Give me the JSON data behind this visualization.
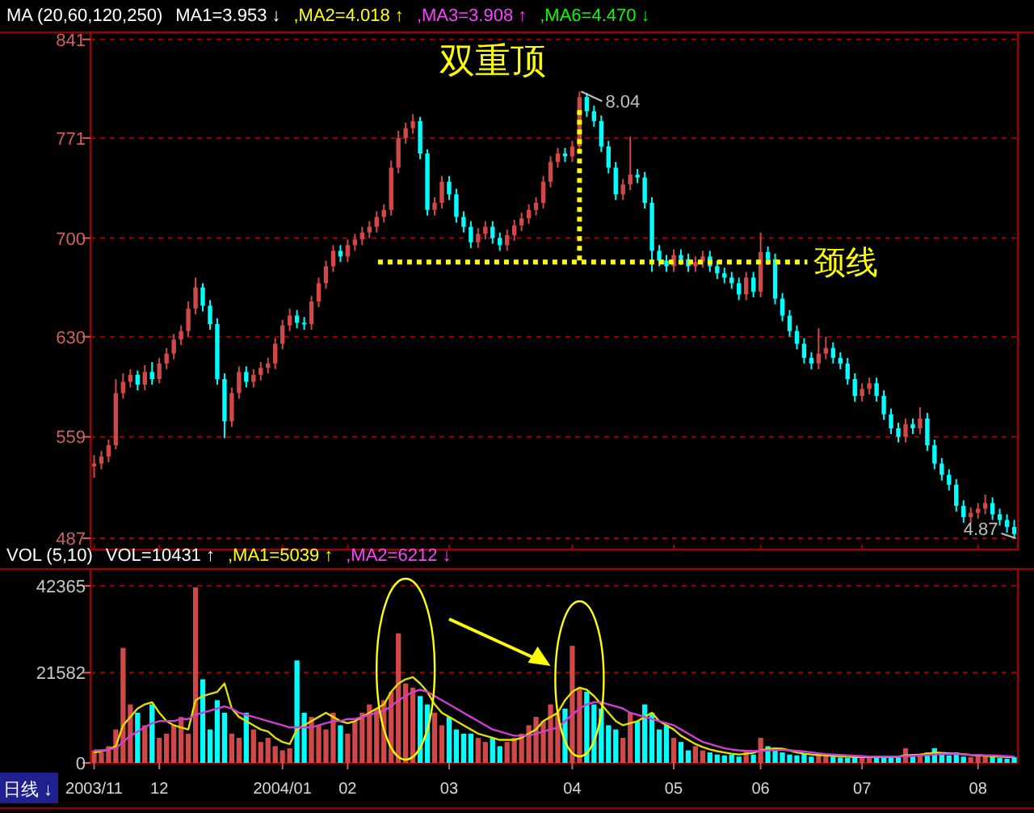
{
  "chart_data": [
    {
      "type": "candlestick",
      "title": "双重顶",
      "tick_labels": "y",
      "grid": "y",
      "ylim": [
        479,
        846
      ],
      "yticks": [
        487,
        559,
        630,
        700,
        771,
        841
      ],
      "categories": [
        "2003/11",
        null,
        null,
        null,
        null,
        null,
        null,
        null,
        null,
        "12",
        null,
        null,
        null,
        null,
        null,
        null,
        null,
        null,
        null,
        null,
        null,
        null,
        null,
        null,
        null,
        null,
        "2004/01",
        null,
        null,
        null,
        null,
        null,
        null,
        null,
        null,
        "02",
        null,
        null,
        null,
        null,
        null,
        null,
        null,
        null,
        null,
        null,
        null,
        null,
        null,
        "03",
        null,
        null,
        null,
        null,
        null,
        null,
        null,
        null,
        null,
        null,
        null,
        null,
        null,
        null,
        null,
        null,
        "04",
        null,
        null,
        null,
        null,
        null,
        null,
        null,
        null,
        null,
        null,
        null,
        null,
        null,
        "05",
        null,
        null,
        null,
        null,
        null,
        null,
        null,
        null,
        null,
        null,
        null,
        "06",
        null,
        null,
        null,
        null,
        null,
        null,
        null,
        null,
        null,
        null,
        null,
        null,
        null,
        "07",
        null,
        null,
        null,
        null,
        null,
        null,
        null,
        null,
        null,
        null,
        null,
        null,
        null,
        null,
        null,
        "08",
        null,
        null,
        null,
        null,
        null
      ],
      "ohlc": [
        [
          538,
          546,
          530,
          540
        ],
        [
          540,
          549,
          536,
          545
        ],
        [
          545,
          557,
          541,
          553
        ],
        [
          553,
          600,
          550,
          590
        ],
        [
          590,
          604,
          586,
          598
        ],
        [
          598,
          607,
          594,
          603
        ],
        [
          603,
          606,
          592,
          596
        ],
        [
          596,
          610,
          592,
          605
        ],
        [
          605,
          612,
          596,
          600
        ],
        [
          600,
          615,
          597,
          611
        ],
        [
          611,
          622,
          607,
          618
        ],
        [
          618,
          632,
          614,
          628
        ],
        [
          628,
          638,
          624,
          634
        ],
        [
          634,
          655,
          630,
          650
        ],
        [
          650,
          672,
          646,
          665
        ],
        [
          665,
          668,
          648,
          652
        ],
        [
          652,
          656,
          635,
          639
        ],
        [
          639,
          643,
          596,
          600
        ],
        [
          600,
          604,
          558,
          570
        ],
        [
          570,
          594,
          566,
          590
        ],
        [
          590,
          609,
          586,
          605
        ],
        [
          605,
          609,
          594,
          598
        ],
        [
          598,
          607,
          594,
          603
        ],
        [
          603,
          612,
          599,
          608
        ],
        [
          608,
          615,
          604,
          611
        ],
        [
          611,
          629,
          607,
          625
        ],
        [
          625,
          642,
          621,
          638
        ],
        [
          638,
          650,
          634,
          645
        ],
        [
          645,
          649,
          636,
          640
        ],
        [
          640,
          644,
          635,
          639
        ],
        [
          639,
          659,
          635,
          655
        ],
        [
          655,
          672,
          651,
          668
        ],
        [
          668,
          684,
          664,
          680
        ],
        [
          680,
          695,
          676,
          691
        ],
        [
          691,
          695,
          683,
          687
        ],
        [
          687,
          699,
          683,
          695
        ],
        [
          695,
          703,
          691,
          699
        ],
        [
          699,
          708,
          695,
          704
        ],
        [
          704,
          712,
          700,
          708
        ],
        [
          708,
          719,
          704,
          715
        ],
        [
          715,
          724,
          711,
          720
        ],
        [
          720,
          755,
          716,
          750
        ],
        [
          750,
          776,
          746,
          771
        ],
        [
          771,
          782,
          767,
          778
        ],
        [
          778,
          788,
          774,
          783
        ],
        [
          783,
          786,
          756,
          760
        ],
        [
          760,
          763,
          716,
          720
        ],
        [
          720,
          729,
          716,
          725
        ],
        [
          725,
          744,
          721,
          740
        ],
        [
          740,
          744,
          727,
          731
        ],
        [
          731,
          735,
          711,
          715
        ],
        [
          715,
          719,
          704,
          708
        ],
        [
          708,
          712,
          693,
          697
        ],
        [
          697,
          707,
          693,
          703
        ],
        [
          703,
          712,
          699,
          708
        ],
        [
          708,
          712,
          696,
          700
        ],
        [
          700,
          704,
          691,
          695
        ],
        [
          695,
          706,
          691,
          702
        ],
        [
          702,
          713,
          698,
          709
        ],
        [
          709,
          718,
          705,
          714
        ],
        [
          714,
          724,
          710,
          720
        ],
        [
          720,
          729,
          716,
          725
        ],
        [
          725,
          744,
          721,
          740
        ],
        [
          740,
          758,
          736,
          754
        ],
        [
          754,
          764,
          750,
          760
        ],
        [
          760,
          764,
          754,
          758
        ],
        [
          758,
          769,
          754,
          765
        ],
        [
          765,
          804,
          762,
          800
        ],
        [
          800,
          803,
          786,
          790
        ],
        [
          790,
          794,
          779,
          783
        ],
        [
          783,
          787,
          761,
          765
        ],
        [
          765,
          769,
          746,
          750
        ],
        [
          750,
          754,
          727,
          731
        ],
        [
          731,
          742,
          727,
          738
        ],
        [
          738,
          772,
          734,
          745
        ],
        [
          745,
          749,
          739,
          743
        ],
        [
          743,
          747,
          721,
          725
        ],
        [
          725,
          729,
          676,
          691
        ],
        [
          691,
          695,
          680,
          684
        ],
        [
          684,
          688,
          676,
          680
        ],
        [
          680,
          692,
          676,
          688
        ],
        [
          688,
          692,
          681,
          685
        ],
        [
          685,
          689,
          676,
          680
        ],
        [
          680,
          687,
          676,
          683
        ],
        [
          683,
          691,
          679,
          687
        ],
        [
          687,
          691,
          676,
          680
        ],
        [
          680,
          684,
          671,
          675
        ],
        [
          675,
          679,
          668,
          672
        ],
        [
          672,
          676,
          664,
          668
        ],
        [
          668,
          672,
          656,
          660
        ],
        [
          660,
          676,
          656,
          672
        ],
        [
          672,
          676,
          658,
          662
        ],
        [
          662,
          704,
          658,
          690
        ],
        [
          690,
          694,
          681,
          685
        ],
        [
          685,
          689,
          653,
          657
        ],
        [
          657,
          661,
          641,
          645
        ],
        [
          645,
          649,
          630,
          634
        ],
        [
          634,
          638,
          621,
          625
        ],
        [
          625,
          629,
          611,
          615
        ],
        [
          615,
          619,
          607,
          611
        ],
        [
          611,
          636,
          607,
          618
        ],
        [
          618,
          630,
          614,
          622
        ],
        [
          622,
          626,
          611,
          615
        ],
        [
          615,
          619,
          607,
          611
        ],
        [
          611,
          615,
          596,
          600
        ],
        [
          600,
          604,
          584,
          588
        ],
        [
          588,
          597,
          584,
          593
        ],
        [
          593,
          601,
          589,
          597
        ],
        [
          597,
          601,
          584,
          588
        ],
        [
          588,
          592,
          571,
          575
        ],
        [
          575,
          579,
          561,
          565
        ],
        [
          565,
          569,
          555,
          559
        ],
        [
          559,
          572,
          555,
          568
        ],
        [
          568,
          572,
          561,
          565
        ],
        [
          565,
          580,
          561,
          572
        ],
        [
          572,
          576,
          549,
          553
        ],
        [
          553,
          557,
          536,
          540
        ],
        [
          540,
          544,
          528,
          532
        ],
        [
          532,
          536,
          521,
          525
        ],
        [
          525,
          529,
          506,
          510
        ],
        [
          510,
          514,
          498,
          502
        ],
        [
          502,
          509,
          498,
          505
        ],
        [
          505,
          512,
          501,
          508
        ],
        [
          508,
          518,
          504,
          512
        ],
        [
          512,
          516,
          500,
          504
        ],
        [
          504,
          508,
          496,
          500
        ],
        [
          500,
          504,
          491,
          495
        ],
        [
          495,
          500,
          487,
          490
        ]
      ],
      "colors": [
        "#d04848",
        "#d04848",
        "#d04848",
        "#d04848",
        "#d04848",
        "#d04848",
        "#00ffff",
        "#d04848",
        "#00ffff",
        "#d04848",
        "#d04848",
        "#d04848",
        "#d04848",
        "#d04848",
        "#d04848",
        "#00ffff",
        "#00ffff",
        "#00ffff",
        "#00ffff",
        "#d04848",
        "#d04848",
        "#00ffff",
        "#d04848",
        "#d04848",
        "#d04848",
        "#d04848",
        "#d04848",
        "#d04848",
        "#00ffff",
        "#00ffff",
        "#d04848",
        "#d04848",
        "#d04848",
        "#d04848",
        "#00ffff",
        "#d04848",
        "#d04848",
        "#d04848",
        "#d04848",
        "#d04848",
        "#d04848",
        "#d04848",
        "#d04848",
        "#d04848",
        "#d04848",
        "#00ffff",
        "#00ffff",
        "#d04848",
        "#d04848",
        "#00ffff",
        "#00ffff",
        "#00ffff",
        "#00ffff",
        "#d04848",
        "#d04848",
        "#00ffff",
        "#00ffff",
        "#d04848",
        "#d04848",
        "#d04848",
        "#d04848",
        "#d04848",
        "#d04848",
        "#d04848",
        "#d04848",
        "#00ffff",
        "#d04848",
        "#d04848",
        "#00ffff",
        "#00ffff",
        "#00ffff",
        "#00ffff",
        "#00ffff",
        "#d04848",
        "#d04848",
        "#00ffff",
        "#00ffff",
        "#00ffff",
        "#00ffff",
        "#00ffff",
        "#d04848",
        "#00ffff",
        "#00ffff",
        "#d04848",
        "#d04848",
        "#00ffff",
        "#00ffff",
        "#00ffff",
        "#00ffff",
        "#00ffff",
        "#d04848",
        "#00ffff",
        "#d04848",
        "#00ffff",
        "#00ffff",
        "#00ffff",
        "#00ffff",
        "#00ffff",
        "#00ffff",
        "#00ffff",
        "#d04848",
        "#d04848",
        "#00ffff",
        "#00ffff",
        "#00ffff",
        "#00ffff",
        "#d04848",
        "#d04848",
        "#00ffff",
        "#00ffff",
        "#00ffff",
        "#00ffff",
        "#d04848",
        "#00ffff",
        "#d04848",
        "#00ffff",
        "#00ffff",
        "#00ffff",
        "#00ffff",
        "#00ffff",
        "#00ffff",
        "#d04848",
        "#d04848",
        "#d04848",
        "#00ffff",
        "#00ffff",
        "#00ffff",
        "#00ffff"
      ],
      "ref_lines": [
        {
          "axis": "y",
          "value": 683,
          "label": "颈线",
          "color": "#ffff00",
          "line_style": "dotted"
        }
      ],
      "annotations": [
        "8.04",
        "4.87",
        "MA (20,60,120,250)",
        "MA1=3.953 ↓",
        ",MA2=4.018 ↑",
        ",MA3=3.908 ↑",
        ",MA6=4.470 ↓"
      ]
    },
    {
      "type": "bar",
      "grid": "y",
      "ylim": [
        0,
        46400
      ],
      "yticks": [
        0,
        21582,
        42365
      ],
      "categories": [
        "2003/11",
        null,
        null,
        null,
        null,
        null,
        null,
        null,
        null,
        "12",
        null,
        null,
        null,
        null,
        null,
        null,
        null,
        null,
        null,
        null,
        null,
        null,
        null,
        null,
        null,
        null,
        "2004/01",
        null,
        null,
        null,
        null,
        null,
        null,
        null,
        null,
        "02",
        null,
        null,
        null,
        null,
        null,
        null,
        null,
        null,
        null,
        null,
        null,
        null,
        null,
        "03",
        null,
        null,
        null,
        null,
        null,
        null,
        null,
        null,
        null,
        null,
        null,
        null,
        null,
        null,
        null,
        null,
        "04",
        null,
        null,
        null,
        null,
        null,
        null,
        null,
        null,
        null,
        null,
        null,
        null,
        null,
        "05",
        null,
        null,
        null,
        null,
        null,
        null,
        null,
        null,
        null,
        null,
        null,
        "06",
        null,
        null,
        null,
        null,
        null,
        null,
        null,
        null,
        null,
        null,
        null,
        null,
        null,
        "07",
        null,
        null,
        null,
        null,
        null,
        null,
        null,
        null,
        null,
        null,
        null,
        null,
        null,
        null,
        null,
        "08",
        null,
        null,
        null,
        null,
        null
      ],
      "series": [
        {
          "type": "bar",
          "values": [
            3000,
            2500,
            4000,
            8000,
            27500,
            14000,
            12000,
            9000,
            14000,
            6000,
            7000,
            9000,
            11000,
            7000,
            42000,
            20000,
            8000,
            15000,
            12000,
            7000,
            6000,
            12000,
            8000,
            5000,
            6000,
            4000,
            3000,
            3500,
            24500,
            12000,
            11000,
            9000,
            8000,
            12000,
            9000,
            7000,
            10000,
            12000,
            14000,
            13000,
            15000,
            17000,
            31000,
            19000,
            18000,
            16000,
            14000,
            12000,
            9000,
            11000,
            8000,
            7000,
            7000,
            6000,
            5000,
            6000,
            4000,
            5000,
            6000,
            7000,
            9000,
            11000,
            10000,
            14000,
            12000,
            13000,
            28000,
            18000,
            17000,
            14000,
            13000,
            9000,
            8000,
            6000,
            12000,
            10000,
            14000,
            12000,
            8000,
            9000,
            6000,
            5000,
            3000,
            4000,
            3000,
            2500,
            2000,
            1800,
            2000,
            1500,
            3000,
            2000,
            6000,
            4000,
            3000,
            2500,
            2000,
            1800,
            2200,
            1500,
            2000,
            1800,
            1500,
            1300,
            1200,
            1500,
            1800,
            1400,
            1300,
            1200,
            1500,
            1600,
            3500,
            1500,
            2000,
            2500,
            3500,
            2000,
            1800,
            2500,
            1500,
            1400,
            2000,
            1800,
            1600,
            1200,
            1000,
            1400
          ],
          "colors": [
            "#d04848",
            "#d04848",
            "#d04848",
            "#d04848",
            "#d04848",
            "#d04848",
            "#00ffff",
            "#d04848",
            "#00ffff",
            "#d04848",
            "#d04848",
            "#d04848",
            "#d04848",
            "#d04848",
            "#d04848",
            "#00ffff",
            "#00ffff",
            "#00ffff",
            "#00ffff",
            "#d04848",
            "#d04848",
            "#00ffff",
            "#d04848",
            "#d04848",
            "#d04848",
            "#d04848",
            "#d04848",
            "#d04848",
            "#00ffff",
            "#00ffff",
            "#d04848",
            "#d04848",
            "#d04848",
            "#d04848",
            "#00ffff",
            "#d04848",
            "#d04848",
            "#d04848",
            "#d04848",
            "#d04848",
            "#d04848",
            "#d04848",
            "#d04848",
            "#d04848",
            "#d04848",
            "#00ffff",
            "#00ffff",
            "#d04848",
            "#d04848",
            "#00ffff",
            "#00ffff",
            "#00ffff",
            "#00ffff",
            "#d04848",
            "#d04848",
            "#00ffff",
            "#00ffff",
            "#d04848",
            "#d04848",
            "#d04848",
            "#d04848",
            "#d04848",
            "#d04848",
            "#d04848",
            "#d04848",
            "#00ffff",
            "#d04848",
            "#d04848",
            "#00ffff",
            "#00ffff",
            "#00ffff",
            "#00ffff",
            "#00ffff",
            "#d04848",
            "#d04848",
            "#00ffff",
            "#00ffff",
            "#00ffff",
            "#00ffff",
            "#00ffff",
            "#d04848",
            "#00ffff",
            "#00ffff",
            "#d04848",
            "#d04848",
            "#00ffff",
            "#00ffff",
            "#00ffff",
            "#00ffff",
            "#00ffff",
            "#d04848",
            "#00ffff",
            "#d04848",
            "#00ffff",
            "#00ffff",
            "#00ffff",
            "#00ffff",
            "#00ffff",
            "#00ffff",
            "#00ffff",
            "#d04848",
            "#d04848",
            "#00ffff",
            "#00ffff",
            "#00ffff",
            "#00ffff",
            "#d04848",
            "#d04848",
            "#00ffff",
            "#00ffff",
            "#00ffff",
            "#00ffff",
            "#d04848",
            "#00ffff",
            "#d04848",
            "#00ffff",
            "#00ffff",
            "#00ffff",
            "#00ffff",
            "#00ffff",
            "#00ffff",
            "#d04848",
            "#d04848",
            "#d04848",
            "#00ffff",
            "#00ffff",
            "#00ffff",
            "#00ffff"
          ]
        },
        {
          "type": "line",
          "color": "#e0e000",
          "values": [
            2500,
            2800,
            3200,
            4000,
            9000,
            11000,
            13000,
            14000,
            14500,
            12000,
            10000,
            9000,
            8500,
            8000,
            15000,
            16000,
            16500,
            17000,
            19000,
            13000,
            11000,
            10000,
            9000,
            8000,
            7500,
            6000,
            5000,
            4500,
            8000,
            9000,
            10000,
            11000,
            12000,
            11000,
            10000,
            9500,
            10000,
            11000,
            12000,
            13000,
            14000,
            17000,
            19000,
            20000,
            20500,
            19000,
            17000,
            14000,
            12000,
            11000,
            10000,
            9000,
            8000,
            7000,
            6500,
            6000,
            5500,
            5500,
            5500,
            6000,
            7000,
            8000,
            10000,
            11000,
            12000,
            15000,
            17000,
            18000,
            17500,
            16000,
            14000,
            12000,
            10000,
            9000,
            9500,
            10000,
            11000,
            12000,
            10000,
            9000,
            8000,
            6500,
            5500,
            4500,
            3800,
            3200,
            2800,
            2500,
            2200,
            2000,
            2200,
            2400,
            3000,
            3300,
            3500,
            3400,
            3000,
            2500,
            2200,
            2000,
            1900,
            1800,
            1700,
            1600,
            1500,
            1400,
            1400,
            1400,
            1400,
            1400,
            1400,
            1500,
            1800,
            1900,
            2000,
            2200,
            2500,
            2400,
            2300,
            2200,
            2100,
            1900,
            1800,
            1700,
            1600,
            1500,
            1400,
            1400
          ]
        },
        {
          "type": "line",
          "color": "#d040d0",
          "values": [
            3000,
            3000,
            3200,
            3500,
            5000,
            6500,
            7500,
            8500,
            9500,
            10000,
            10000,
            10000,
            10500,
            10500,
            11500,
            12000,
            12500,
            13000,
            13500,
            13000,
            12000,
            11500,
            11000,
            10500,
            10000,
            9500,
            9000,
            8500,
            8500,
            8500,
            8500,
            9000,
            9500,
            10000,
            10000,
            10500,
            10500,
            11000,
            11500,
            12000,
            12500,
            13500,
            15000,
            16000,
            17000,
            17500,
            17000,
            16000,
            15000,
            14000,
            13000,
            12000,
            11000,
            10000,
            9000,
            8000,
            7500,
            7000,
            6500,
            6500,
            6500,
            7000,
            7500,
            8000,
            8500,
            10000,
            11500,
            13000,
            14000,
            14500,
            14500,
            14000,
            13500,
            13000,
            12000,
            11500,
            11000,
            10500,
            10000,
            9500,
            9000,
            8000,
            7000,
            6000,
            5000,
            4500,
            4000,
            3500,
            3200,
            3000,
            2900,
            2800,
            2900,
            3000,
            3100,
            3100,
            3000,
            2900,
            2700,
            2500,
            2300,
            2100,
            2000,
            1900,
            1800,
            1700,
            1600,
            1500,
            1500,
            1500,
            1500,
            1500,
            1600,
            1700,
            1800,
            1900,
            2000,
            2100,
            2100,
            2100,
            2000,
            1900,
            1900,
            1800,
            1800,
            1700,
            1600,
            1500
          ]
        }
      ],
      "annotations": [
        "VOL (5,10)",
        "VOL=10431 ↑",
        ",MA1=5039 ↑",
        ",MA2=6212 ↓",
        "日线 ↓"
      ]
    }
  ]
}
